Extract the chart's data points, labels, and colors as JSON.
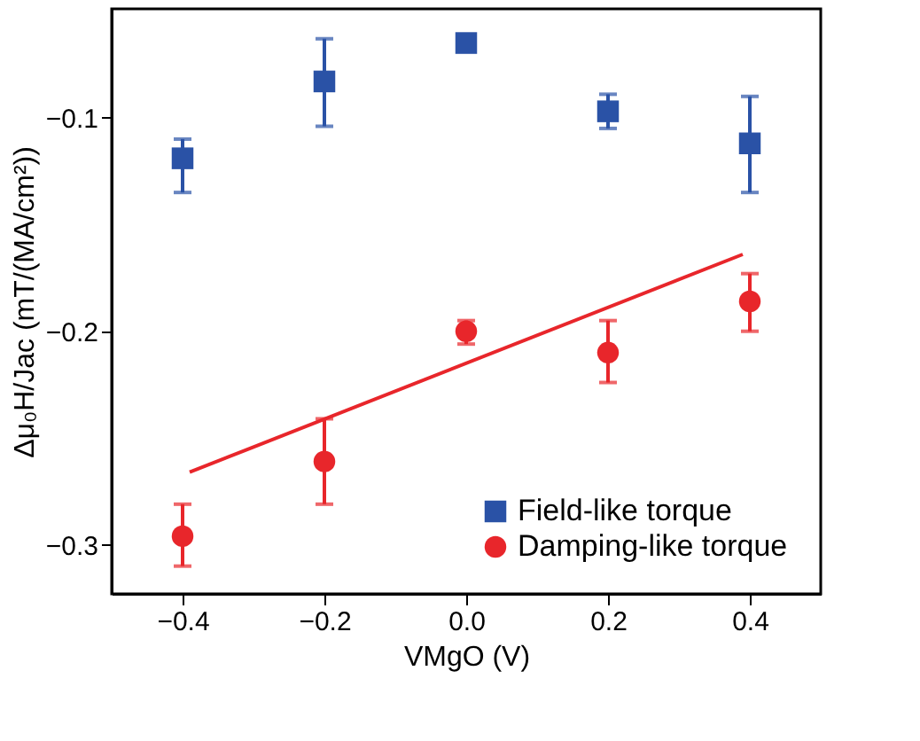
{
  "chart_data": {
    "type": "scatter",
    "xlabel": "VMgO (V)",
    "ylabel": "Δμ₀H/Jac (mT/(MA/cm²))",
    "x": [
      -0.4,
      -0.2,
      0.0,
      0.2,
      0.4
    ],
    "series": [
      {
        "name": "Field-like torque",
        "color": "#2a52a6",
        "marker": "square",
        "values": [
          -0.119,
          -0.083,
          -0.065,
          -0.097,
          -0.112
        ],
        "errors": [
          [
            -0.135,
            -0.11
          ],
          [
            -0.104,
            -0.063
          ],
          null,
          [
            -0.105,
            -0.089
          ],
          [
            -0.135,
            -0.09
          ]
        ]
      },
      {
        "name": "Damping-like torque",
        "color": "#e8262b",
        "marker": "circle",
        "values": [
          -0.296,
          -0.261,
          -0.2,
          -0.21,
          -0.186
        ],
        "errors": [
          [
            -0.31,
            -0.281
          ],
          [
            -0.281,
            -0.241
          ],
          [
            -0.206,
            -0.195
          ],
          [
            -0.224,
            -0.195
          ],
          [
            -0.2,
            -0.173
          ]
        ]
      },
      {
        "type": "line",
        "color": "#e8262b",
        "x": [
          -0.39,
          0.39
        ],
        "values": [
          -0.266,
          -0.164
        ]
      }
    ],
    "xlim": [
      -0.5,
      0.5
    ],
    "xticks": [
      -0.4,
      -0.2,
      {
        "value": 0,
        "label": "0.0"
      },
      0.2,
      0.4
    ],
    "ylim": [
      -0.323,
      -0.049
    ],
    "yticks": [
      -0.1,
      -0.2,
      -0.3
    ],
    "grid": false,
    "legend": "bottom right"
  }
}
